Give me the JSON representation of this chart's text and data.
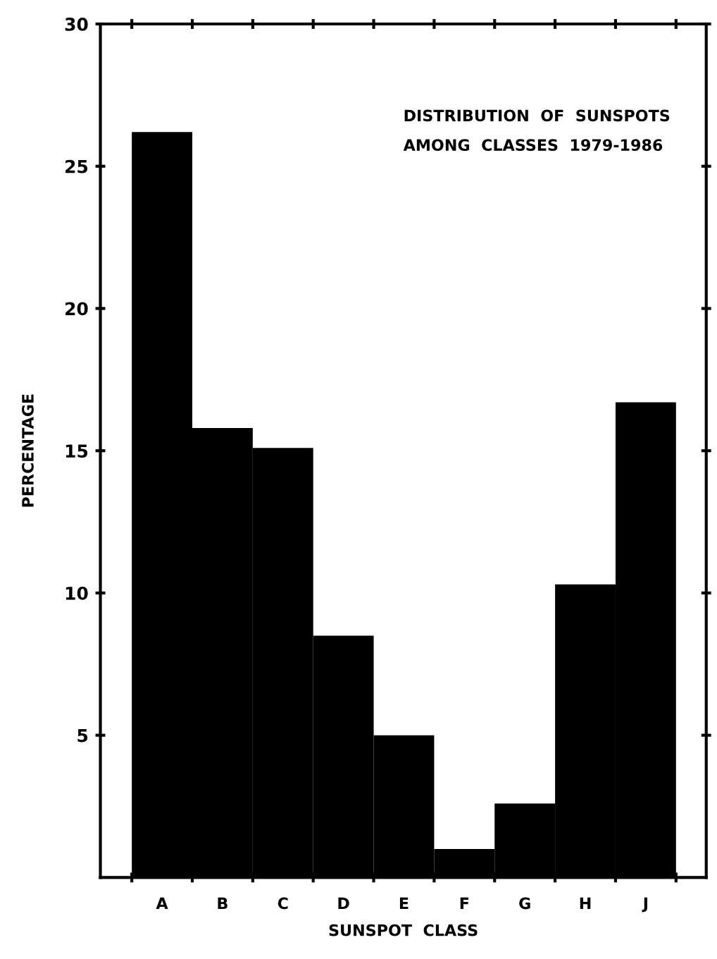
{
  "chart_data": {
    "type": "bar",
    "title": "DISTRIBUTION  OF  SUNSPOTS\nAMONG  CLASSES  1979-1986",
    "xlabel": "SUNSPOT  CLASS",
    "ylabel": "PERCENTAGE",
    "categories": [
      "A",
      "B",
      "C",
      "D",
      "E",
      "F",
      "G",
      "H",
      "J"
    ],
    "values": [
      26.2,
      15.8,
      15.1,
      8.5,
      5.0,
      1.0,
      2.6,
      10.3,
      16.7
    ],
    "color": "#000000",
    "ylim": [
      0,
      30
    ],
    "yticks": [
      5,
      10,
      15,
      20,
      25,
      30
    ],
    "grid": false,
    "legend": false
  }
}
